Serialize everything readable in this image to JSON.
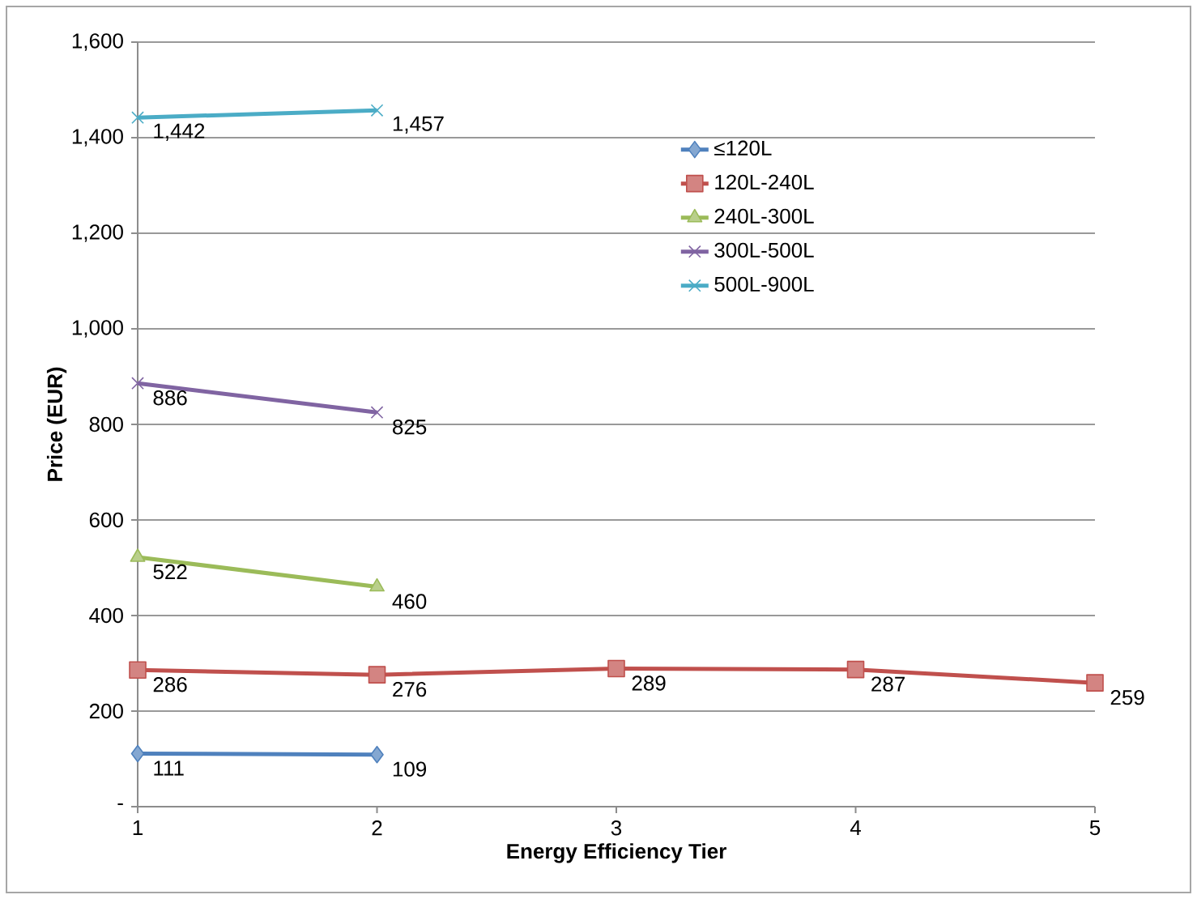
{
  "chart_data": {
    "type": "line",
    "xlabel": "Energy Efficiency Tier",
    "ylabel": "Price (EUR)",
    "x": [
      1,
      2,
      3,
      4,
      5
    ],
    "xlim": [
      1,
      5
    ],
    "xticks": [
      1,
      2,
      3,
      4,
      5
    ],
    "ylim": [
      0,
      1600
    ],
    "yticks": [
      {
        "value": 0,
        "label": "-"
      },
      200,
      400,
      600,
      800,
      {
        "value": 1000,
        "label": "1,000"
      },
      {
        "value": 1200,
        "label": "1,200"
      },
      {
        "value": 1400,
        "label": "1,400"
      },
      {
        "value": 1600,
        "label": "1,600"
      }
    ],
    "grid": "y",
    "legend": "top right",
    "line_style": "solid",
    "series": [
      {
        "name": "≤120L",
        "color": "#4f81bd",
        "marker": "diamond",
        "values": [
          111,
          109,
          null,
          null,
          null
        ],
        "value_labels": [
          "111",
          "109",
          null,
          null,
          null
        ]
      },
      {
        "name": "120L-240L",
        "color": "#c0504d",
        "marker": "square",
        "values": [
          286,
          276,
          289,
          287,
          259
        ],
        "value_labels": [
          "286",
          "276",
          "289",
          "287",
          "259"
        ]
      },
      {
        "name": "240L-300L",
        "color": "#9bbb59",
        "marker": "triangle",
        "values": [
          522,
          460,
          null,
          null,
          null
        ],
        "value_labels": [
          "522",
          "460",
          null,
          null,
          null
        ]
      },
      {
        "name": "300L-500L",
        "color": "#8064a2",
        "marker": "cross",
        "values": [
          886,
          825,
          null,
          null,
          null
        ],
        "value_labels": [
          "886",
          "825",
          null,
          null,
          null
        ]
      },
      {
        "name": "500L-900L",
        "color": "#4bacc6",
        "marker": "cross",
        "values": [
          1442,
          1457,
          null,
          null,
          null
        ],
        "value_labels": [
          "1,442",
          "1,457",
          null,
          null,
          null
        ]
      }
    ]
  }
}
